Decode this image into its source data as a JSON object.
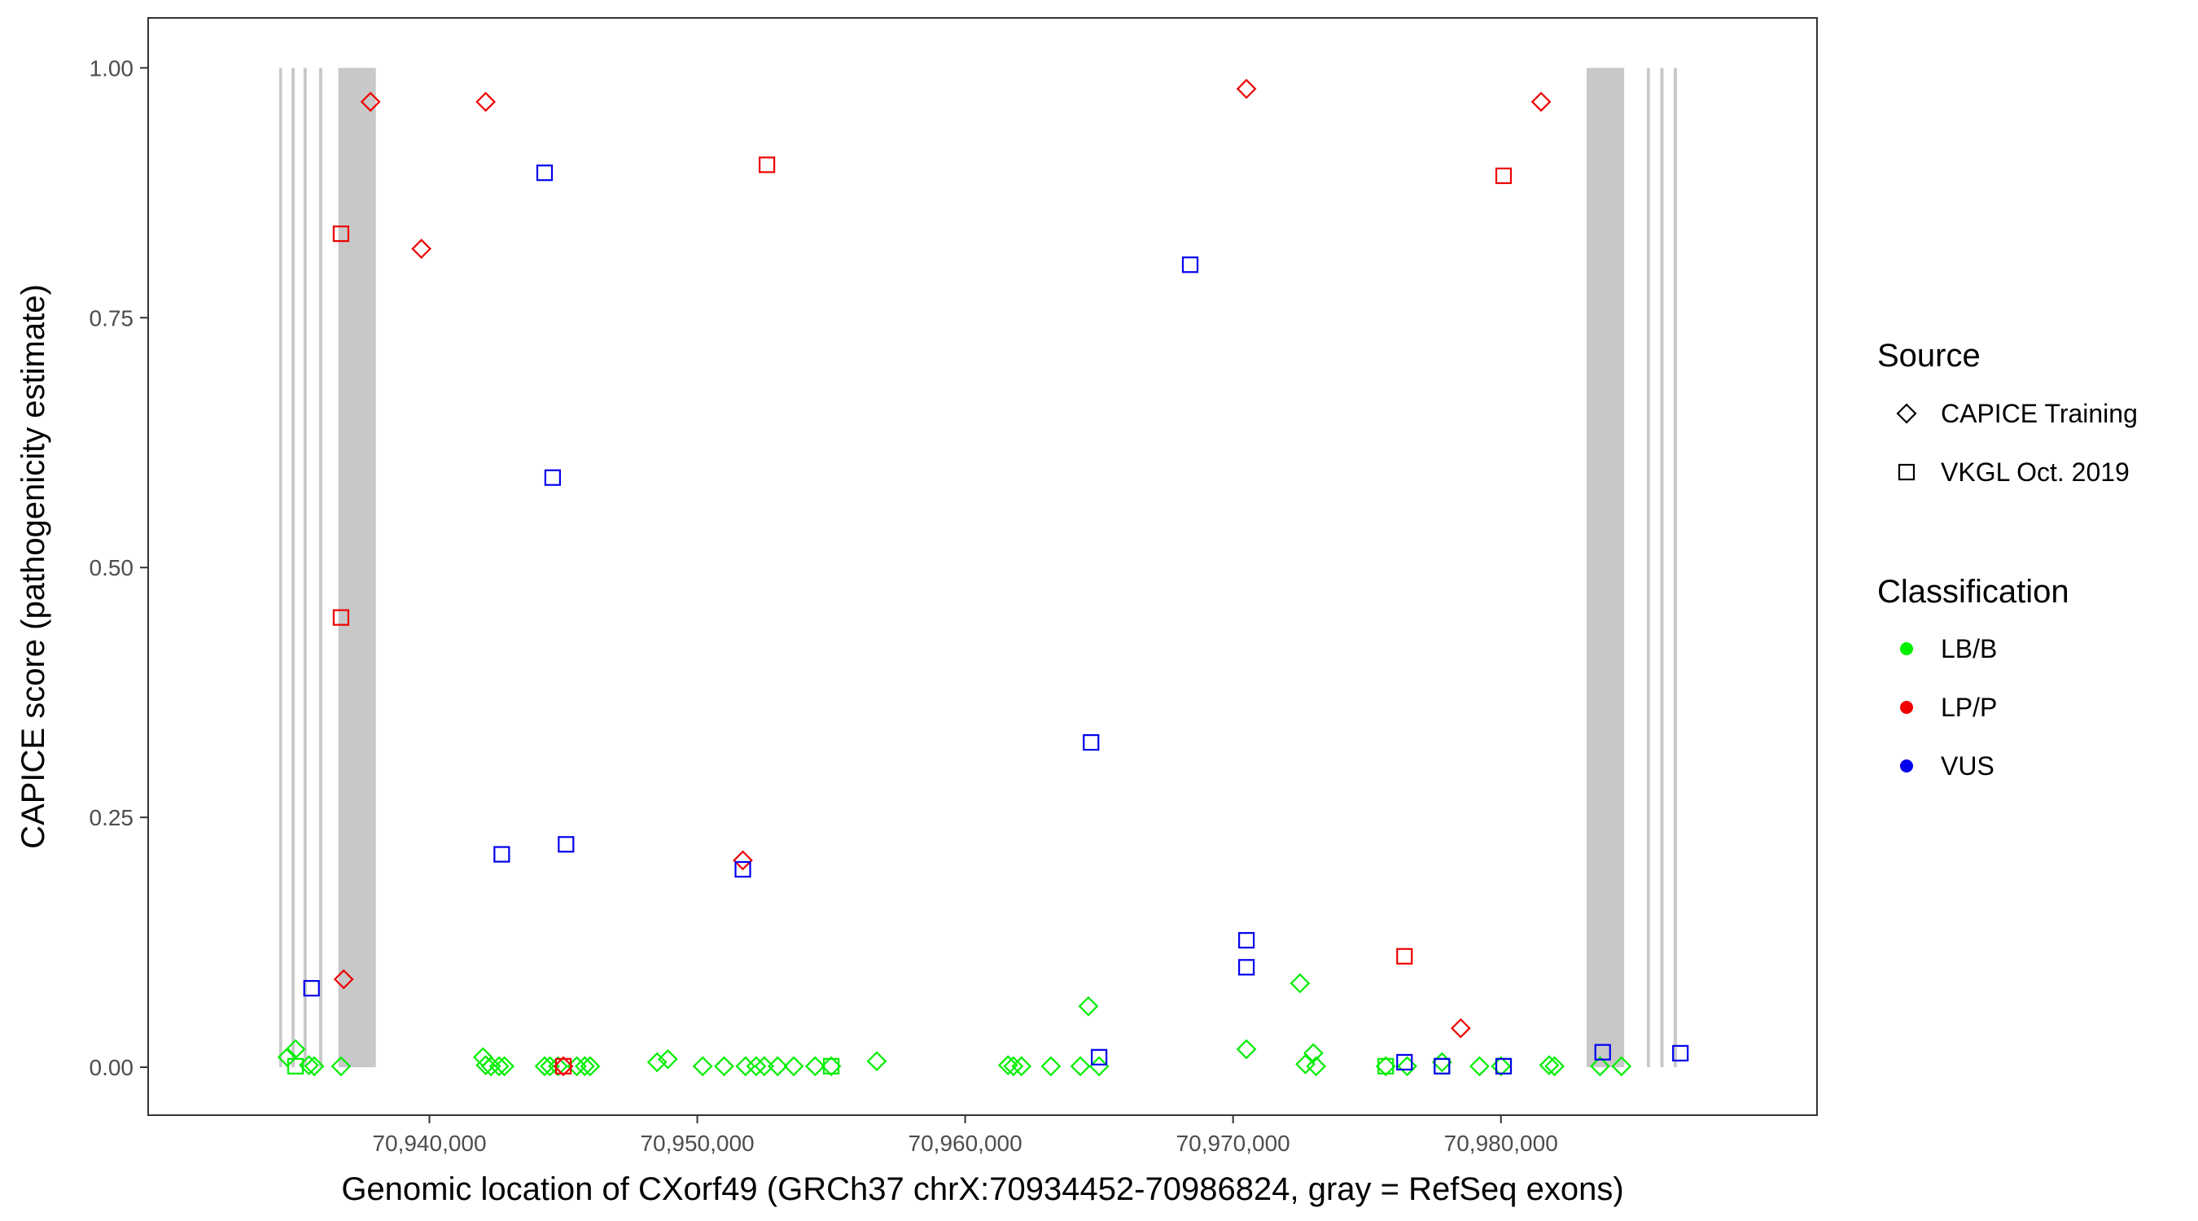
{
  "chart_data": {
    "type": "scatter",
    "title": "",
    "xlabel": "Genomic location of CXorf49 (GRCh37 chrX:70934452-70986824, gray = RefSeq exons)",
    "ylabel": "CAPICE score (pathogenicity estimate)",
    "xlim": [
      70929500,
      70991800
    ],
    "ylim": [
      -0.048,
      1.05
    ],
    "x_ticks": [
      70940000,
      70950000,
      70960000,
      70970000,
      70980000
    ],
    "x_tick_labels": [
      "70,940,000",
      "70,950,000",
      "70,960,000",
      "70,970,000",
      "70,980,000"
    ],
    "y_ticks": [
      0,
      0.25,
      0.5,
      0.75,
      1.0
    ],
    "y_tick_labels": [
      "0.00",
      "0.25",
      "0.50",
      "0.75",
      "1.00"
    ],
    "grid": false,
    "legend_position": "right",
    "exons": [
      [
        70934390,
        70934500
      ],
      [
        70934850,
        70934970
      ],
      [
        70935300,
        70935420
      ],
      [
        70935880,
        70936000
      ],
      [
        70936600,
        70938000
      ],
      [
        70983200,
        70984600
      ],
      [
        70985450,
        70985560
      ],
      [
        70985950,
        70986070
      ],
      [
        70986450,
        70986570
      ]
    ],
    "legend_source": {
      "title": "Source",
      "items": [
        {
          "label": "CAPICE Training",
          "shape": "diamond"
        },
        {
          "label": "VKGL Oct. 2019",
          "shape": "square"
        }
      ]
    },
    "legend_classification": {
      "title": "Classification",
      "items": [
        {
          "label": "LB/B",
          "color": "#00ee00"
        },
        {
          "label": "LP/P",
          "color": "#ee0000"
        },
        {
          "label": "VUS",
          "color": "#0000ee"
        }
      ]
    },
    "colors": {
      "LB/B": "#00ee00",
      "LP/P": "#ee0000",
      "VUS": "#0000ee",
      "exon": "#c8c8c8"
    },
    "series": [
      {
        "source": "CAPICE Training",
        "classification": "LB/B",
        "shape": "diamond",
        "points": [
          [
            70934700,
            0.01
          ],
          [
            70935000,
            0.018
          ],
          [
            70935500,
            0.002
          ],
          [
            70935700,
            0.001
          ],
          [
            70936700,
            0.001
          ],
          [
            70942000,
            0.01
          ],
          [
            70942100,
            0.002
          ],
          [
            70942300,
            0.001
          ],
          [
            70942600,
            0.001
          ],
          [
            70942800,
            0.001
          ],
          [
            70944300,
            0.001
          ],
          [
            70944500,
            0.001
          ],
          [
            70944800,
            0.001
          ],
          [
            70945500,
            0.001
          ],
          [
            70945800,
            0.001
          ],
          [
            70946000,
            0.001
          ],
          [
            70948500,
            0.005
          ],
          [
            70948900,
            0.008
          ],
          [
            70950200,
            0.001
          ],
          [
            70951000,
            0.001
          ],
          [
            70951800,
            0.001
          ],
          [
            70952200,
            0.001
          ],
          [
            70952500,
            0.001
          ],
          [
            70953000,
            0.001
          ],
          [
            70953600,
            0.001
          ],
          [
            70954400,
            0.001
          ],
          [
            70955000,
            0.001
          ],
          [
            70956700,
            0.006
          ],
          [
            70961600,
            0.002
          ],
          [
            70961800,
            0.001
          ],
          [
            70962100,
            0.001
          ],
          [
            70963200,
            0.001
          ],
          [
            70964300,
            0.001
          ],
          [
            70964600,
            0.061
          ],
          [
            70965000,
            0.001
          ],
          [
            70970500,
            0.018
          ],
          [
            70972500,
            0.084
          ],
          [
            70972700,
            0.003
          ],
          [
            70973000,
            0.014
          ],
          [
            70973100,
            0.001
          ],
          [
            70975700,
            0.001
          ],
          [
            70976500,
            0.001
          ],
          [
            70977800,
            0.005
          ],
          [
            70979200,
            0.001
          ],
          [
            70980000,
            0.001
          ],
          [
            70981800,
            0.002
          ],
          [
            70982000,
            0.001
          ],
          [
            70983700,
            0.001
          ],
          [
            70984500,
            0.001
          ]
        ]
      },
      {
        "source": "VKGL Oct. 2019",
        "classification": "LB/B",
        "shape": "square",
        "points": [
          [
            70935000,
            0.001
          ],
          [
            70955000,
            0.001
          ],
          [
            70975700,
            0.001
          ],
          [
            70977800,
            0.001
          ],
          [
            70980100,
            0.001
          ]
        ]
      },
      {
        "source": "CAPICE Training",
        "classification": "LP/P",
        "shape": "diamond",
        "points": [
          [
            70937800,
            0.966
          ],
          [
            70939700,
            0.819
          ],
          [
            70936800,
            0.088
          ],
          [
            70942100,
            0.966
          ],
          [
            70945000,
            0.001
          ],
          [
            70951700,
            0.207
          ],
          [
            70970500,
            0.979
          ],
          [
            70978500,
            0.039
          ],
          [
            70981500,
            0.966
          ]
        ]
      },
      {
        "source": "VKGL Oct. 2019",
        "classification": "LP/P",
        "shape": "square",
        "points": [
          [
            70936700,
            0.834
          ],
          [
            70936700,
            0.45
          ],
          [
            70945000,
            0.001
          ],
          [
            70952600,
            0.903
          ],
          [
            70976400,
            0.111
          ],
          [
            70980100,
            0.892
          ]
        ]
      },
      {
        "source": "VKGL Oct. 2019",
        "classification": "VUS",
        "shape": "square",
        "points": [
          [
            70935600,
            0.079
          ],
          [
            70942700,
            0.213
          ],
          [
            70944300,
            0.895
          ],
          [
            70944600,
            0.59
          ],
          [
            70945100,
            0.223
          ],
          [
            70951700,
            0.198
          ],
          [
            70964700,
            0.325
          ],
          [
            70965000,
            0.01
          ],
          [
            70968400,
            0.803
          ],
          [
            70970500,
            0.127
          ],
          [
            70970500,
            0.1
          ],
          [
            70976400,
            0.005
          ],
          [
            70977800,
            0.001
          ],
          [
            70980100,
            0.001
          ],
          [
            70983800,
            0.015
          ],
          [
            70986700,
            0.014
          ]
        ]
      }
    ]
  }
}
